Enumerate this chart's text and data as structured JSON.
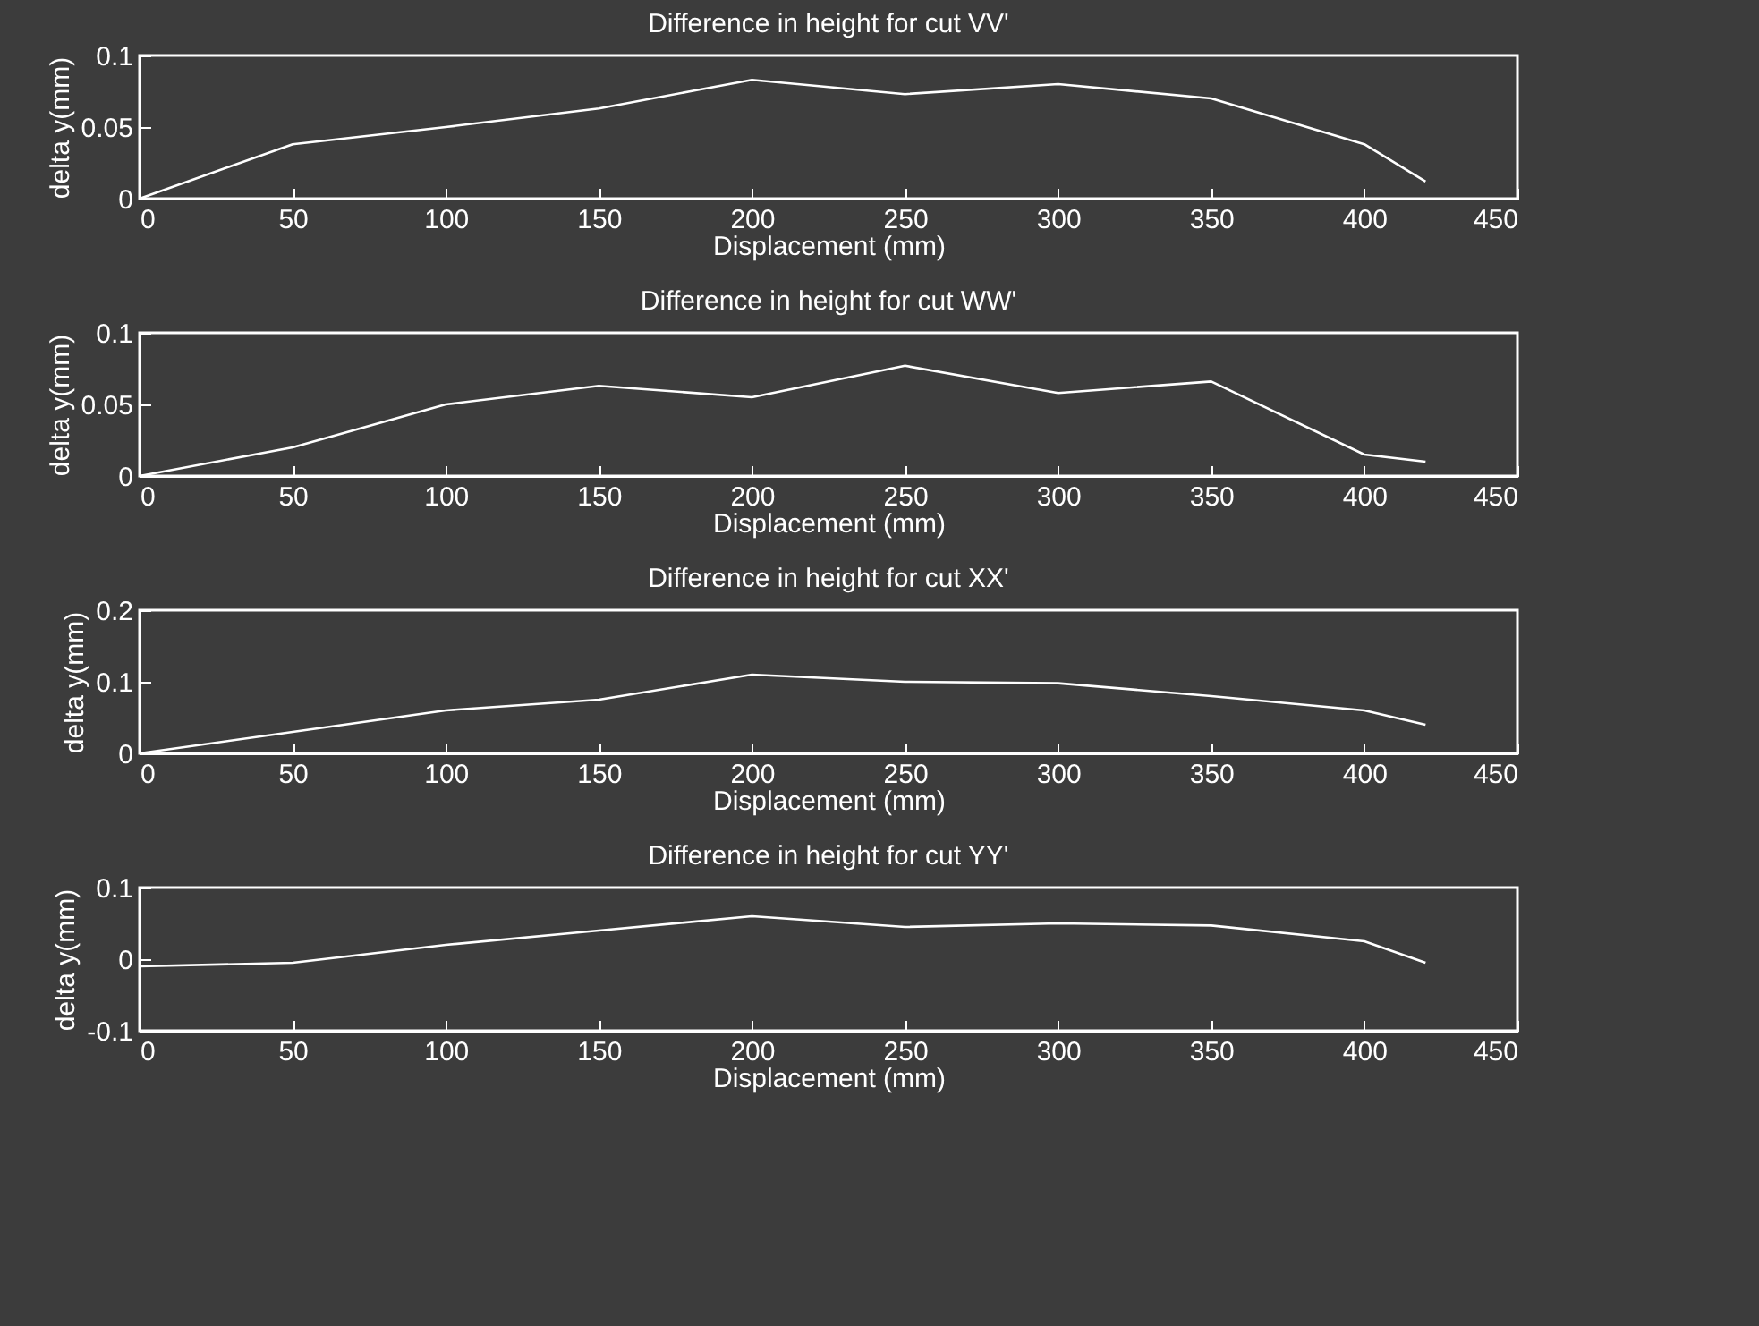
{
  "chart_data": [
    {
      "type": "line",
      "title": "Difference in height for cut VV'",
      "xlabel": "Displacement (mm)",
      "ylabel": "delta y(mm)",
      "xlim": [
        0,
        450
      ],
      "xticks": [
        0,
        50,
        100,
        150,
        200,
        250,
        300,
        350,
        400,
        450
      ],
      "ylim": [
        0,
        0.1
      ],
      "yticks": [
        0,
        0.05,
        0.1
      ],
      "grid": false,
      "x": [
        0,
        50,
        100,
        150,
        180,
        200,
        250,
        300,
        350,
        400,
        420
      ],
      "series": [
        {
          "color": "#ffffff",
          "values": [
            0,
            0.038,
            0.05,
            0.063,
            0.075,
            0.083,
            0.073,
            0.08,
            0.07,
            0.038,
            0.012
          ]
        }
      ]
    },
    {
      "type": "line",
      "title": "Difference in height for cut WW'",
      "xlabel": "Displacement (mm)",
      "ylabel": "delta y(mm)",
      "xlim": [
        0,
        450
      ],
      "xticks": [
        0,
        50,
        100,
        150,
        200,
        250,
        300,
        350,
        400,
        450
      ],
      "ylim": [
        0,
        0.1
      ],
      "yticks": [
        0,
        0.05,
        0.1
      ],
      "grid": false,
      "x": [
        0,
        50,
        100,
        150,
        200,
        250,
        300,
        350,
        400,
        420
      ],
      "series": [
        {
          "color": "#ffffff",
          "values": [
            0,
            0.02,
            0.05,
            0.063,
            0.055,
            0.077,
            0.058,
            0.066,
            0.015,
            0.01
          ]
        }
      ]
    },
    {
      "type": "line",
      "title": "Difference in height for cut XX'",
      "xlabel": "Displacement (mm)",
      "ylabel": "delta y(mm)",
      "xlim": [
        0,
        450
      ],
      "xticks": [
        0,
        50,
        100,
        150,
        200,
        250,
        300,
        350,
        400,
        450
      ],
      "ylim": [
        0,
        0.2
      ],
      "yticks": [
        0,
        0.1,
        0.2
      ],
      "grid": false,
      "x": [
        0,
        50,
        100,
        150,
        200,
        250,
        300,
        350,
        400,
        420
      ],
      "series": [
        {
          "color": "#ffffff",
          "values": [
            0,
            0.03,
            0.06,
            0.075,
            0.11,
            0.1,
            0.098,
            0.08,
            0.06,
            0.04
          ]
        }
      ]
    },
    {
      "type": "line",
      "title": "Difference in height for cut YY'",
      "xlabel": "Displacement (mm)",
      "ylabel": "delta y(mm)",
      "xlim": [
        0,
        450
      ],
      "xticks": [
        0,
        50,
        100,
        150,
        200,
        250,
        300,
        350,
        400,
        450
      ],
      "ylim": [
        -0.1,
        0.1
      ],
      "yticks": [
        -0.1,
        0,
        0.1
      ],
      "grid": false,
      "x": [
        0,
        50,
        100,
        150,
        200,
        250,
        300,
        350,
        400,
        420
      ],
      "series": [
        {
          "color": "#ffffff",
          "values": [
            -0.01,
            -0.005,
            0.02,
            0.04,
            0.06,
            0.045,
            0.05,
            0.047,
            0.025,
            -0.005
          ]
        }
      ]
    }
  ]
}
